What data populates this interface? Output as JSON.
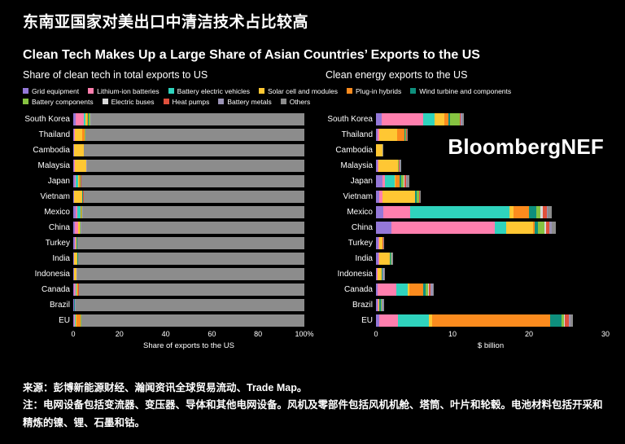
{
  "titles": {
    "zh": "东南亚国家对美出口中清洁技术占比较高",
    "en": "Clean Tech Makes Up a Large Share of Asian Countries’ Exports to the US"
  },
  "logo": {
    "part1": "Bloomberg",
    "part2": "NEF"
  },
  "legend": {
    "row_break": 6,
    "categories": [
      {
        "label": "Grid equipment",
        "color": "#9478d8"
      },
      {
        "label": "Lithium-ion batteries",
        "color": "#ff7fae"
      },
      {
        "label": "Battery electric vehicles",
        "color": "#2fd3bd"
      },
      {
        "label": "Solar cell and modules",
        "color": "#ffc733"
      },
      {
        "label": "Plug-in hybrids",
        "color": "#fb8b1e"
      },
      {
        "label": "Wind turbine and components",
        "color": "#0e8f7d"
      },
      {
        "label": "Battery components",
        "color": "#86c341"
      },
      {
        "label": "Electric buses",
        "color": "#d9d9d9"
      },
      {
        "label": "Heat pumps",
        "color": "#e0503c"
      },
      {
        "label": "Battery metals",
        "color": "#9a93b5"
      },
      {
        "label": "Others",
        "color": "#8c8c8c"
      }
    ]
  },
  "chart_data": [
    {
      "type": "bar",
      "orientation": "horizontal",
      "stacked": true,
      "title": "Share of clean tech in total exports to US",
      "xlabel": "Share of exports to the US",
      "xlim": [
        0,
        100
      ],
      "unit": "%",
      "x_ticks": [
        "0",
        "20",
        "40",
        "60",
        "80",
        "100%"
      ],
      "categories": [
        "South Korea",
        "Thailand",
        "Cambodia",
        "Malaysia",
        "Japan",
        "Vietnam",
        "Mexico",
        "China",
        "Turkey",
        "India",
        "Indonesia",
        "Canada",
        "Brazil",
        "EU"
      ],
      "series": [
        {
          "name": "Grid equipment",
          "values": [
            1.0,
            0.3,
            0.2,
            0.4,
            0.8,
            0.3,
            1.0,
            0.8,
            0.8,
            0.3,
            0.2,
            0.3,
            0.3,
            0.3
          ]
        },
        {
          "name": "Lithium-ion batteries",
          "values": [
            3.5,
            0.3,
            0,
            0.2,
            0.3,
            0.2,
            0.9,
            1.2,
            0.2,
            0.1,
            0.1,
            0.8,
            0.1,
            0.4
          ]
        },
        {
          "name": "Battery electric vehicles",
          "values": [
            0.8,
            0,
            0,
            0,
            1.0,
            0,
            1.2,
            0.2,
            0,
            0,
            0,
            0.4,
            0,
            0.5
          ]
        },
        {
          "name": "Solar cell and modules",
          "values": [
            0.8,
            3.2,
            4.5,
            5.0,
            0.2,
            3.5,
            0.1,
            0.5,
            0.5,
            1.5,
            1.0,
            0.1,
            0.1,
            0.1
          ]
        },
        {
          "name": "Plug-in hybrids",
          "values": [
            0.4,
            1.2,
            0,
            0,
            0.4,
            0,
            0.3,
            0.1,
            0,
            0,
            0,
            0.5,
            0,
            1.8
          ]
        },
        {
          "name": "Wind turbine and components",
          "values": [
            0.1,
            0.1,
            0,
            0,
            0.2,
            0.2,
            0.2,
            0.1,
            0.1,
            0.1,
            0.1,
            0.1,
            0.2,
            0.2
          ]
        },
        {
          "name": "Battery components",
          "values": [
            0.8,
            0.1,
            0,
            0.1,
            0.3,
            0.2,
            0.1,
            0.2,
            0,
            0.1,
            0.1,
            0.1,
            0.1,
            0.1
          ]
        },
        {
          "name": "Electric buses",
          "values": [
            0,
            0,
            0,
            0,
            0.1,
            0,
            0.1,
            0.1,
            0,
            0,
            0,
            0,
            0,
            0
          ]
        },
        {
          "name": "Heat pumps",
          "values": [
            0.1,
            0.1,
            0,
            0.1,
            0.1,
            0.1,
            0.1,
            0.1,
            0.1,
            0,
            0,
            0.1,
            0,
            0.1
          ]
        },
        {
          "name": "Battery metals",
          "values": [
            0.2,
            0,
            0,
            0.1,
            0.1,
            0.1,
            0.1,
            0.1,
            0,
            0.1,
            0.3,
            0.2,
            0.3,
            0.1
          ]
        },
        {
          "name": "Others",
          "values": [
            92.3,
            94.7,
            95.3,
            94.1,
            96.5,
            95.4,
            95.9,
            96.6,
            98.3,
            97.8,
            98.2,
            97.4,
            98.9,
            96.4
          ]
        }
      ]
    },
    {
      "type": "bar",
      "orientation": "horizontal",
      "stacked": true,
      "title": "Clean energy exports to the US",
      "xlabel": "$ billion",
      "xlim": [
        0,
        30
      ],
      "unit": "$bn",
      "x_ticks": [
        "0",
        "10",
        "20",
        "30"
      ],
      "categories": [
        "South Korea",
        "Thailand",
        "Cambodia",
        "Malaysia",
        "Japan",
        "Vietnam",
        "Mexico",
        "China",
        "Turkey",
        "India",
        "Indonesia",
        "Canada",
        "Brazil",
        "EU"
      ],
      "series": [
        {
          "name": "Grid equipment",
          "values": [
            0.7,
            0.2,
            0.05,
            0.2,
            0.9,
            0.4,
            1.0,
            2.0,
            0.3,
            0.3,
            0.1,
            0.2,
            0.2,
            0.4
          ]
        },
        {
          "name": "Lithium-ion batteries",
          "values": [
            5.5,
            0.2,
            0,
            0.1,
            0.3,
            0.4,
            3.5,
            13.5,
            0.1,
            0.1,
            0.1,
            2.5,
            0.1,
            2.5
          ]
        },
        {
          "name": "Battery electric vehicles",
          "values": [
            1.5,
            0,
            0,
            0,
            1.2,
            0,
            13.0,
            1.5,
            0,
            0,
            0,
            1.5,
            0,
            4.0
          ]
        },
        {
          "name": "Solar cell and modules",
          "values": [
            1.2,
            2.4,
            0.85,
            2.6,
            0.2,
            4.3,
            0.5,
            3.5,
            0.4,
            1.4,
            0.5,
            0.2,
            0.1,
            0.4
          ]
        },
        {
          "name": "Plug-in hybrids",
          "values": [
            0.6,
            0.9,
            0,
            0,
            0.5,
            0,
            2.0,
            0.2,
            0,
            0,
            0,
            1.8,
            0,
            15.5
          ]
        },
        {
          "name": "Wind turbine and components",
          "values": [
            0.2,
            0.1,
            0,
            0,
            0.2,
            0.2,
            1.0,
            0.5,
            0.1,
            0.1,
            0.1,
            0.3,
            0.2,
            1.5
          ]
        },
        {
          "name": "Battery components",
          "values": [
            1.3,
            0.1,
            0,
            0.1,
            0.3,
            0.3,
            0.5,
            0.8,
            0,
            0.1,
            0.1,
            0.3,
            0.1,
            0.3
          ]
        },
        {
          "name": "Electric buses",
          "values": [
            0,
            0,
            0,
            0,
            0.1,
            0,
            0.3,
            0.2,
            0,
            0,
            0,
            0.1,
            0,
            0.1
          ]
        },
        {
          "name": "Heat pumps",
          "values": [
            0.1,
            0.1,
            0,
            0.1,
            0.2,
            0.1,
            0.5,
            0.5,
            0.1,
            0,
            0,
            0.2,
            0,
            0.5
          ]
        },
        {
          "name": "Battery metals",
          "values": [
            0.2,
            0,
            0,
            0.1,
            0.2,
            0.1,
            0.2,
            0.3,
            0,
            0.1,
            0.2,
            0.3,
            0.3,
            0.2
          ]
        },
        {
          "name": "Others",
          "values": [
            0.2,
            0.1,
            0.05,
            0.1,
            0.3,
            0.1,
            0.5,
            0.5,
            0.05,
            0.1,
            0.1,
            0.2,
            0.1,
            0.3
          ]
        }
      ]
    }
  ],
  "notes": {
    "source": "来源：彭博新能源财经、瀚闻资讯全球贸易流动、Trade Map。",
    "note": "注：电网设备包括变流器、变压器、导体和其他电网设备。风机及零部件包括风机机舱、塔筒、叶片和轮毂。电池材料包括开采和精炼的镍、锂、石墨和钴。"
  }
}
